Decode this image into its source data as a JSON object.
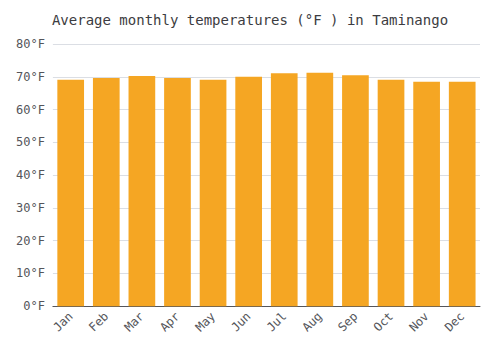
{
  "chart_data": {
    "type": "bar",
    "title": "Average monthly temperatures (°F ) in Taminango",
    "categories": [
      "Jan",
      "Feb",
      "Mar",
      "Apr",
      "May",
      "Jun",
      "Jul",
      "Aug",
      "Sep",
      "Oct",
      "Nov",
      "Dec"
    ],
    "values": [
      69.1,
      69.6,
      70.2,
      69.6,
      69.1,
      70.0,
      71.1,
      71.2,
      70.5,
      69.1,
      68.5,
      68.5
    ],
    "color": "#F5A623",
    "ylim": [
      0,
      80
    ],
    "yticks": [
      {
        "value": 0,
        "label": "0°F"
      },
      {
        "value": 10,
        "label": "10°F"
      },
      {
        "value": 20,
        "label": "20°F"
      },
      {
        "value": 30,
        "label": "30°F"
      },
      {
        "value": 40,
        "label": "40°F"
      },
      {
        "value": 50,
        "label": "50°F"
      },
      {
        "value": 60,
        "label": "60°F"
      },
      {
        "value": 70,
        "label": "70°F"
      },
      {
        "value": 80,
        "label": "80°F"
      }
    ],
    "grid": true
  }
}
